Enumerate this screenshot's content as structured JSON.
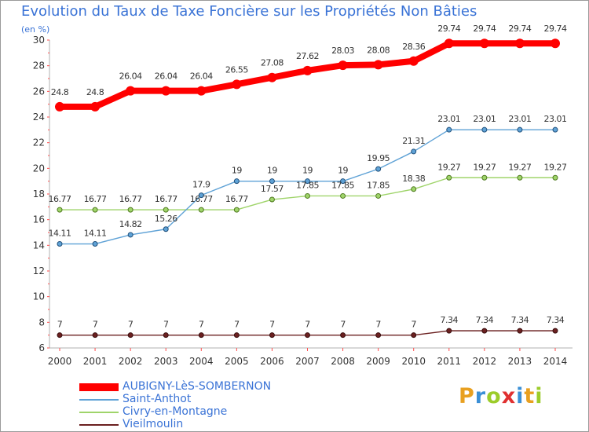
{
  "title": "Evolution du Taux de Taxe Foncière sur les Propriétés Non Bâties",
  "unit": "(en %)",
  "logo": {
    "text": "Proxiti",
    "colors": [
      "#e8a020",
      "#3a8fd6",
      "#9ccc2a",
      "#e03030",
      "#3a8fd6",
      "#e8a020",
      "#9ccc2a"
    ]
  },
  "chart_data": {
    "type": "line",
    "title": "Evolution du Taux de Taxe Foncière sur les Propriétés Non Bâties",
    "ylabel": "(en %)",
    "xlabel": "",
    "x": [
      "2000",
      "2001",
      "2002",
      "2003",
      "2004",
      "2005",
      "2006",
      "2007",
      "2008",
      "2009",
      "2010",
      "2011",
      "2012",
      "2013",
      "2014"
    ],
    "ylim": [
      6,
      30
    ],
    "yticks": [
      "6",
      "8",
      "10",
      "12",
      "14",
      "16",
      "18",
      "20",
      "22",
      "24",
      "26",
      "28",
      "30"
    ],
    "grid": false,
    "legend_position": "bottom-left",
    "series": [
      {
        "name": "AUBIGNY-LèS-SOMBERNON",
        "color": "#ff0000",
        "values": [
          24.8,
          24.8,
          26.04,
          26.04,
          26.04,
          26.55,
          27.08,
          27.62,
          28.03,
          28.08,
          28.36,
          29.74,
          29.74,
          29.74,
          29.74
        ],
        "labels": [
          "24.8",
          "24.8",
          "26.04",
          "26.04",
          "26.04",
          "26.55",
          "27.08",
          "27.62",
          "28.03",
          "28.08",
          "28.36",
          "29.74",
          "29.74",
          "29.74",
          "29.74"
        ]
      },
      {
        "name": "Saint-Anthot",
        "color": "#5fa2d6",
        "values": [
          14.11,
          14.11,
          14.82,
          15.26,
          17.9,
          19,
          19,
          19,
          19,
          19.95,
          21.31,
          23.01,
          23.01,
          23.01,
          23.01
        ],
        "labels": [
          "14.11",
          "14.11",
          "14.82",
          "15.26",
          "17.9",
          "19",
          "19",
          "19",
          "19",
          "19.95",
          "21.31",
          "23.01",
          "23.01",
          "23.01",
          "23.01"
        ]
      },
      {
        "name": "Civry-en-Montagne",
        "color": "#9fd46a",
        "values": [
          16.77,
          16.77,
          16.77,
          16.77,
          16.77,
          16.77,
          17.57,
          17.85,
          17.85,
          17.85,
          18.38,
          19.27,
          19.27,
          19.27,
          19.27
        ],
        "labels": [
          "16.77",
          "16.77",
          "16.77",
          "16.77",
          "16.77",
          "16.77",
          "17.57",
          "17.85",
          "17.85",
          "17.85",
          "18.38",
          "19.27",
          "19.27",
          "19.27",
          "19.27"
        ]
      },
      {
        "name": "Vieilmoulin",
        "color": "#6b2020",
        "values": [
          7,
          7,
          7,
          7,
          7,
          7,
          7,
          7,
          7,
          7,
          7,
          7.34,
          7.34,
          7.34,
          7.34
        ],
        "labels": [
          "7",
          "7",
          "7",
          "7",
          "7",
          "7",
          "7",
          "7",
          "7",
          "7",
          "7",
          "7.34",
          "7.34",
          "7.34",
          "7.34"
        ]
      }
    ]
  }
}
